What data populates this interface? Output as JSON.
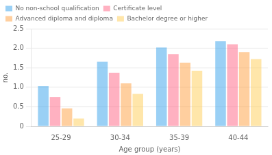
{
  "chart_data": {
    "type": "bar",
    "xlabel": "Age group (years)",
    "ylabel": "no.",
    "categories": [
      "25-29",
      "30-34",
      "35-39",
      "40-44"
    ],
    "series": [
      {
        "name": "No non-school qualification",
        "values": [
          1.03,
          1.65,
          2.02,
          2.18
        ]
      },
      {
        "name": "Certificate level",
        "values": [
          0.75,
          1.37,
          1.85,
          2.1
        ]
      },
      {
        "name": "Advanced diploma and diploma",
        "values": [
          0.46,
          1.1,
          1.63,
          1.9
        ]
      },
      {
        "name": "Bachelor degree or higher",
        "values": [
          0.2,
          0.83,
          1.42,
          1.72
        ]
      }
    ],
    "ylim": [
      0,
      2.5
    ],
    "yticks": [
      0,
      0.5,
      {
        "value": 1,
        "label": "1.0"
      },
      1.5,
      {
        "value": 2,
        "label": "2.0"
      },
      2.5
    ],
    "grid": true,
    "legend": "upper left"
  }
}
